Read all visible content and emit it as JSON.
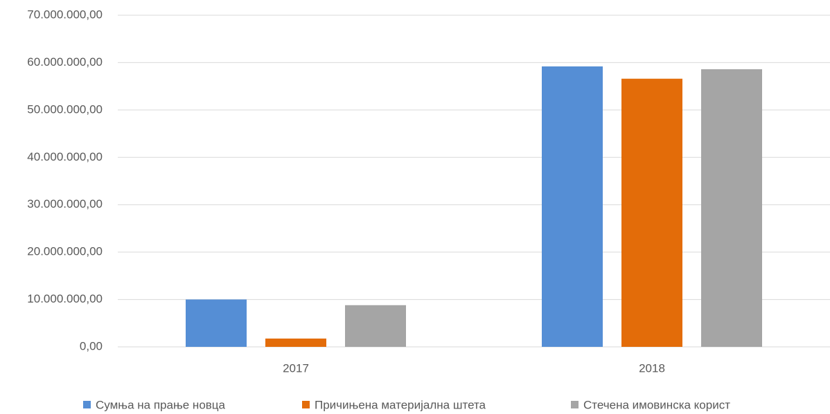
{
  "chart_data": {
    "type": "bar",
    "categories": [
      "2017",
      "2018"
    ],
    "series": [
      {
        "name": "Сумња на прање новца",
        "color": "#558ed5",
        "values": [
          10000000,
          59200000
        ]
      },
      {
        "name": "Причињена материјална штета",
        "color": "#e36c09",
        "values": [
          1750000,
          56600000
        ]
      },
      {
        "name": "Стечена имовинска корист",
        "color": "#a5a5a5",
        "values": [
          8800000,
          58600000
        ]
      }
    ],
    "ylim": [
      0,
      70000000
    ],
    "yticks": [
      {
        "value": 0,
        "label": "0,00"
      },
      {
        "value": 10000000,
        "label": "10.000.000,00"
      },
      {
        "value": 20000000,
        "label": "20.000.000,00"
      },
      {
        "value": 30000000,
        "label": "30.000.000,00"
      },
      {
        "value": 40000000,
        "label": "40.000.000,00"
      },
      {
        "value": 50000000,
        "label": "50.000.000,00"
      },
      {
        "value": 60000000,
        "label": "60.000.000,00"
      },
      {
        "value": 70000000,
        "label": "70.000.000,00"
      }
    ],
    "grid": true,
    "legend": "bottom"
  }
}
